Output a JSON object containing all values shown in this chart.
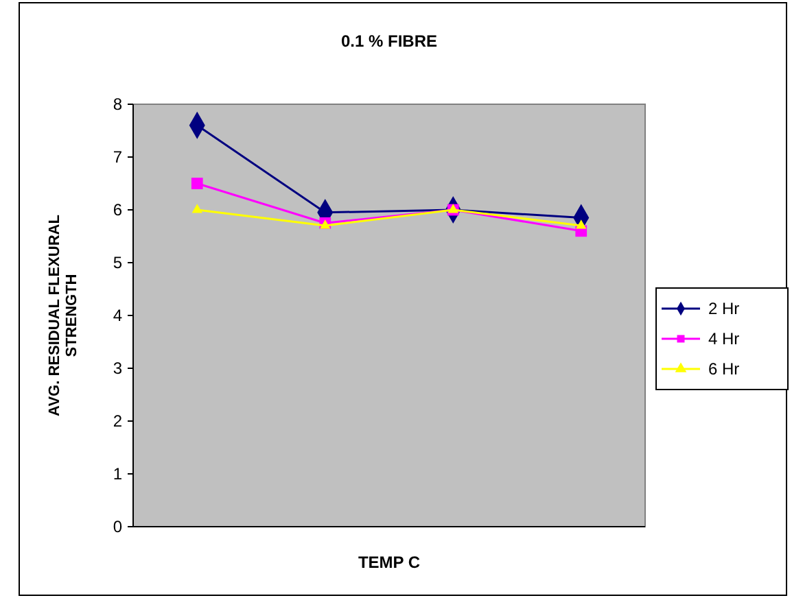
{
  "chart_data": {
    "type": "line",
    "title": "0.1 % FIBRE",
    "xlabel": "TEMP C",
    "ylabel": "AVG. RESIDUAL FLEXURAL STRENGTH",
    "categories": [
      null,
      null,
      null,
      null
    ],
    "series": [
      {
        "name": "2 Hr",
        "color": "#000080",
        "values": [
          7.6,
          5.95,
          6.0,
          5.85
        ],
        "marker": "diamond"
      },
      {
        "name": "4 Hr",
        "color": "#ff00ff",
        "values": [
          6.5,
          5.75,
          6.0,
          5.6
        ],
        "marker": "square"
      },
      {
        "name": "6 Hr",
        "color": "#ffff00",
        "values": [
          6.0,
          5.7,
          6.0,
          5.7
        ],
        "marker": "triangle"
      }
    ],
    "ylim": [
      0,
      8
    ],
    "yticks": [
      0,
      1,
      2,
      3,
      4,
      5,
      6,
      7,
      8
    ],
    "grid": false,
    "legend": "right"
  }
}
